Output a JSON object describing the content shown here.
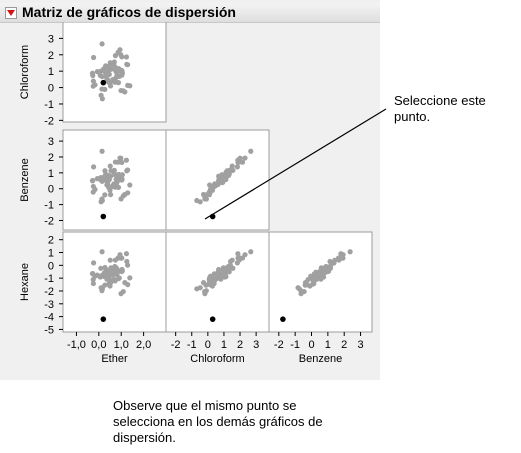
{
  "report": {
    "title": "Matriz de gráficos de dispersión"
  },
  "variables": [
    "Chloroform",
    "Benzene",
    "Hexane",
    "Ether"
  ],
  "x_axis_labels": [
    "Ether",
    "Chloroform",
    "Benzene"
  ],
  "y_axis_labels": [
    "Chloroform",
    "Benzene",
    "Hexane"
  ],
  "ticks": {
    "Ether": [
      "-1,0",
      "0,0",
      "1,0",
      "2,0"
    ],
    "Chloroform": [
      "-2",
      "-1",
      "0",
      "1",
      "2",
      "3"
    ],
    "Benzene": [
      "-2",
      "-1",
      "0",
      "1",
      "2",
      "3"
    ],
    "Hexane": [
      "-5",
      "-4",
      "-3",
      "-2",
      "-1",
      "0",
      "1",
      "2"
    ]
  },
  "callouts": {
    "select_point": "Seleccione este punto.",
    "observe": "Observe que el mismo punto se selecciona en los demás gráficos de dispersión."
  },
  "colors": {
    "point": "#a0a0a0",
    "selected": "#000000",
    "frame": "#9c9c9c"
  },
  "chart_data": {
    "type": "scatter",
    "selected_point": {
      "Ether": 0.2,
      "Chloroform": 0.3,
      "Benzene": -1.75,
      "Hexane": -4.2
    }
  }
}
